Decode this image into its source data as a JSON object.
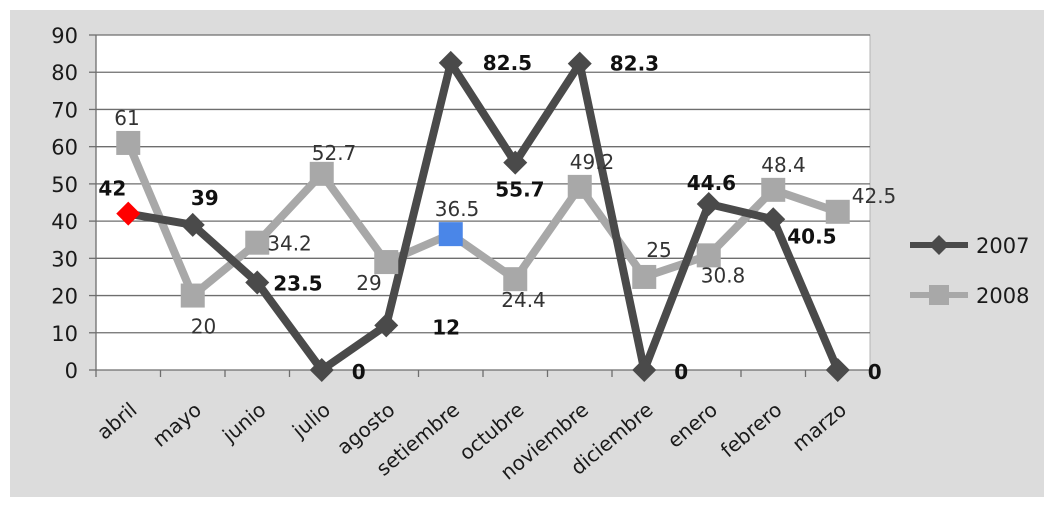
{
  "chart_data": {
    "type": "line",
    "categories": [
      "abril",
      "mayo",
      "junio",
      "julio",
      "agosto",
      "setiembre",
      "octubre",
      "noviembre",
      "diciembre",
      "enero",
      "febrero",
      "marzo"
    ],
    "ylim": [
      0,
      90
    ],
    "yticks": [
      "0",
      "10",
      "20",
      "30",
      "40",
      "50",
      "60",
      "70",
      "80",
      "90"
    ],
    "grid": true,
    "legend_position": "right",
    "series": [
      {
        "name": "2007",
        "values": [
          42,
          39,
          23.5,
          0,
          12,
          82.5,
          55.7,
          82.3,
          0,
          44.6,
          40.5,
          0
        ],
        "labels": [
          "42",
          "39",
          "23.5",
          "0",
          "12",
          "82.5",
          "55.7",
          "82.3",
          "0",
          "44.6",
          "40.5",
          "0"
        ],
        "color": "#4a4a4a",
        "marker": "diamond",
        "highlight_index": 0,
        "highlight_color": "#ff0000"
      },
      {
        "name": "2008",
        "values": [
          61,
          20,
          34.2,
          52.7,
          29,
          36.5,
          24.4,
          49.2,
          25,
          30.8,
          48.4,
          42.5
        ],
        "labels": [
          "61",
          "20",
          "34.2",
          "52.7",
          "29",
          "36.5",
          "24.4",
          "49.2",
          "25",
          "30.8",
          "48.4",
          "42.5"
        ],
        "color": "#a8a8a8",
        "marker": "square",
        "highlight_index": 5,
        "highlight_color": "#4a86e8"
      }
    ]
  }
}
